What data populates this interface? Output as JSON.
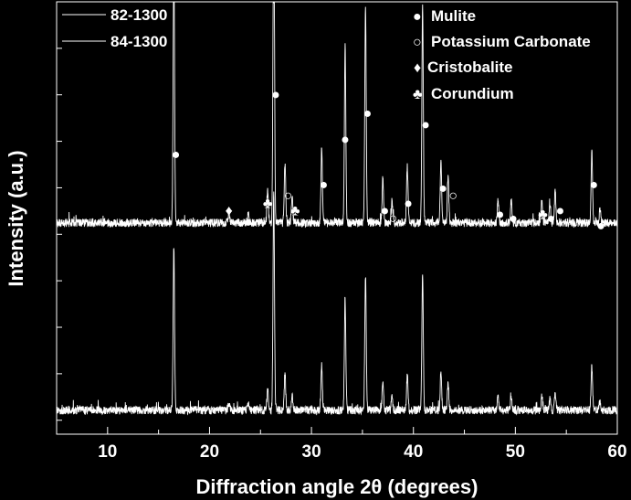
{
  "chart_data": {
    "type": "line",
    "xlabel": "Diffraction angle 2θ (degrees)",
    "ylabel": "Intensity (a.u.)",
    "xlim": [
      5,
      60
    ],
    "xticks": [
      10,
      20,
      30,
      40,
      50,
      60
    ],
    "grid": false,
    "legend_position": "top-left",
    "series": [
      {
        "name": "82-1300",
        "offset": 0.5,
        "color": "#ffffff"
      },
      {
        "name": "84-1300",
        "offset": 0.0,
        "color": "#ffffff"
      }
    ],
    "peaks": [
      {
        "x": 16.5,
        "h": 0.7,
        "phase": "mulite"
      },
      {
        "x": 21.9,
        "h": 0.03,
        "phase": "cristobalite"
      },
      {
        "x": 23.8,
        "h": 0.03,
        "phase": "mulite"
      },
      {
        "x": 25.7,
        "h": 0.09,
        "phase": "corundium"
      },
      {
        "x": 26.3,
        "h": 0.95,
        "phase": "mulite"
      },
      {
        "x": 27.4,
        "h": 0.16,
        "phase": "potassium_carbonate"
      },
      {
        "x": 28.1,
        "h": 0.07,
        "phase": "corundium"
      },
      {
        "x": 31.0,
        "h": 0.2,
        "phase": "mulite"
      },
      {
        "x": 33.3,
        "h": 0.47,
        "phase": "mulite"
      },
      {
        "x": 35.3,
        "h": 0.58,
        "phase": "mulite"
      },
      {
        "x": 37.0,
        "h": 0.12,
        "phase": "mulite"
      },
      {
        "x": 37.9,
        "h": 0.06,
        "phase": "potassium_carbonate"
      },
      {
        "x": 39.4,
        "h": 0.15,
        "phase": "mulite"
      },
      {
        "x": 40.9,
        "h": 0.58,
        "phase": "mulite"
      },
      {
        "x": 42.7,
        "h": 0.17,
        "phase": "mulite"
      },
      {
        "x": 43.4,
        "h": 0.12,
        "phase": "potassium_carbonate"
      },
      {
        "x": 48.3,
        "h": 0.06,
        "phase": "mulite"
      },
      {
        "x": 49.6,
        "h": 0.06,
        "phase": "mulite"
      },
      {
        "x": 52.6,
        "h": 0.06,
        "phase": "corundium"
      },
      {
        "x": 53.4,
        "h": 0.05,
        "phase": "mulite"
      },
      {
        "x": 53.9,
        "h": 0.08,
        "phase": "mulite"
      },
      {
        "x": 57.5,
        "h": 0.19,
        "phase": "mulite"
      },
      {
        "x": 58.3,
        "h": 0.04,
        "phase": "mulite"
      }
    ],
    "markers": [
      {
        "x": 16.7,
        "y": 0.69,
        "symbol": "●"
      },
      {
        "x": 21.9,
        "y": 0.54,
        "symbol": "♦"
      },
      {
        "x": 23.8,
        "y": 0.51,
        "symbol": "●"
      },
      {
        "x": 25.7,
        "y": 0.56,
        "symbol": "♣"
      },
      {
        "x": 26.5,
        "y": 0.85,
        "symbol": "●"
      },
      {
        "x": 27.7,
        "y": 0.58,
        "symbol": "○"
      },
      {
        "x": 28.4,
        "y": 0.54,
        "symbol": "♣"
      },
      {
        "x": 31.2,
        "y": 0.61,
        "symbol": "●"
      },
      {
        "x": 33.3,
        "y": 0.73,
        "symbol": "●"
      },
      {
        "x": 35.5,
        "y": 0.8,
        "symbol": "●"
      },
      {
        "x": 37.2,
        "y": 0.54,
        "symbol": "●"
      },
      {
        "x": 38.0,
        "y": 0.52,
        "symbol": "○"
      },
      {
        "x": 39.5,
        "y": 0.56,
        "symbol": "●"
      },
      {
        "x": 41.2,
        "y": 0.77,
        "symbol": "●"
      },
      {
        "x": 42.9,
        "y": 0.6,
        "symbol": "●"
      },
      {
        "x": 43.9,
        "y": 0.58,
        "symbol": "○"
      },
      {
        "x": 48.5,
        "y": 0.53,
        "symbol": "●"
      },
      {
        "x": 49.8,
        "y": 0.52,
        "symbol": "●"
      },
      {
        "x": 52.7,
        "y": 0.53,
        "symbol": "♣"
      },
      {
        "x": 53.5,
        "y": 0.52,
        "symbol": "●"
      },
      {
        "x": 54.4,
        "y": 0.54,
        "symbol": "●"
      },
      {
        "x": 57.7,
        "y": 0.61,
        "symbol": "●"
      },
      {
        "x": 58.4,
        "y": 0.5,
        "symbol": "●"
      }
    ],
    "phase_legend": [
      {
        "symbol": "●",
        "label": "Mulite"
      },
      {
        "symbol": "○",
        "label": "Potassium Carbonate"
      },
      {
        "symbol": "♦",
        "label": "Cristobalite"
      },
      {
        "symbol": "♣",
        "label": "Corundium"
      }
    ]
  }
}
